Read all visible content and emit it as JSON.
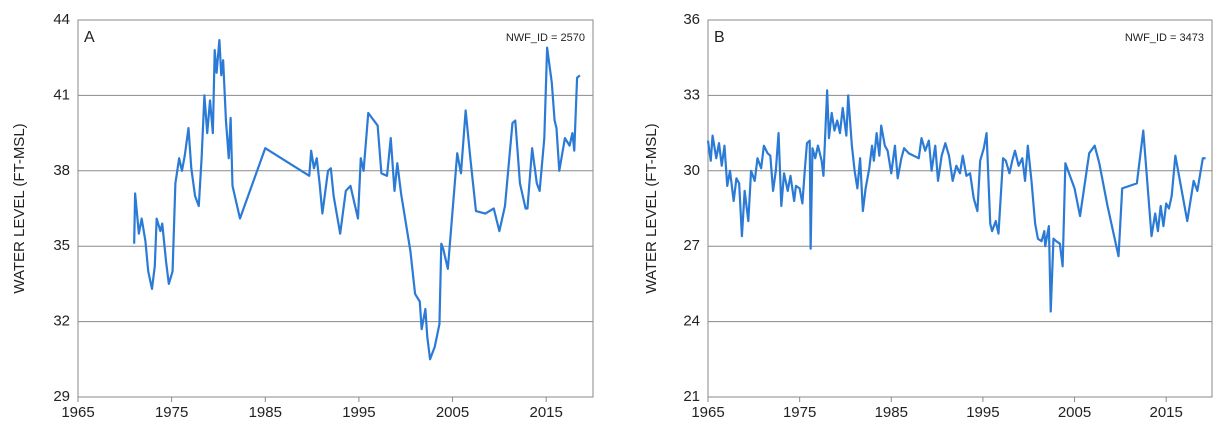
{
  "chart_data": [
    {
      "type": "line",
      "panel": "A",
      "annotation": "NWF_ID = 2570",
      "ylabel": "WATER LEVEL (FT-MSL)",
      "color": "#2b7bd6",
      "xlim": [
        1965,
        2020
      ],
      "xticks": [
        1965,
        1975,
        1985,
        1995,
        2005,
        2015
      ],
      "ylim": [
        29,
        44
      ],
      "yticks": [
        29,
        32,
        35,
        38,
        41,
        44
      ],
      "grid": true,
      "x": [
        1971.0,
        1971.1,
        1971.5,
        1971.8,
        1972.2,
        1972.5,
        1972.9,
        1973.2,
        1973.4,
        1973.8,
        1974.0,
        1974.4,
        1974.7,
        1975.1,
        1975.4,
        1975.8,
        1976.1,
        1976.4,
        1976.8,
        1977.1,
        1977.5,
        1977.9,
        1978.2,
        1978.5,
        1978.8,
        1979.1,
        1979.4,
        1979.6,
        1979.8,
        1980.1,
        1980.3,
        1980.5,
        1980.8,
        1981.1,
        1981.3,
        1981.5,
        1982.3,
        1985.0,
        1989.7,
        1989.9,
        1990.2,
        1990.5,
        1990.8,
        1991.1,
        1991.7,
        1992.0,
        1992.3,
        1993.0,
        1993.6,
        1994.1,
        1994.9,
        1995.2,
        1995.5,
        1996.0,
        1997.0,
        1997.4,
        1998.0,
        1998.4,
        1998.8,
        1999.1,
        1999.5,
        2000.5,
        2001.0,
        2001.5,
        2001.7,
        2002.1,
        2002.3,
        2002.6,
        2003.1,
        2003.6,
        2003.8,
        2004.0,
        2004.5,
        2005.5,
        2005.9,
        2006.4,
        2006.9,
        2007.5,
        2008.5,
        2009.4,
        2010.0,
        2010.6,
        2011.4,
        2011.7,
        2012.2,
        2012.8,
        2013.0,
        2013.5,
        2014.0,
        2014.3,
        2014.8,
        2015.1,
        2015.6,
        2015.9,
        2016.1,
        2016.4,
        2017.0,
        2017.5,
        2017.8,
        2018.0,
        2018.3,
        2018.6
      ],
      "values": [
        35.1,
        37.1,
        35.5,
        36.1,
        35.2,
        34.0,
        33.3,
        34.2,
        36.1,
        35.6,
        35.9,
        34.4,
        33.5,
        34.0,
        37.5,
        38.5,
        38.0,
        38.6,
        39.7,
        38.1,
        37.0,
        36.6,
        38.5,
        41.0,
        39.5,
        40.8,
        39.5,
        42.8,
        41.9,
        43.2,
        41.8,
        42.4,
        40.0,
        38.5,
        40.1,
        37.4,
        36.1,
        38.9,
        37.8,
        38.8,
        38.1,
        38.5,
        37.5,
        36.3,
        38.0,
        38.1,
        37.0,
        35.5,
        37.2,
        37.4,
        36.1,
        38.5,
        38.0,
        40.3,
        39.8,
        37.9,
        37.8,
        39.3,
        37.2,
        38.3,
        37.1,
        34.8,
        33.1,
        32.8,
        31.7,
        32.5,
        31.4,
        30.5,
        31.0,
        31.9,
        35.1,
        34.9,
        34.1,
        38.7,
        37.9,
        40.4,
        38.5,
        36.4,
        36.3,
        36.5,
        35.6,
        36.6,
        39.9,
        40.0,
        37.5,
        36.5,
        36.5,
        38.9,
        37.5,
        37.2,
        39.3,
        42.9,
        41.5,
        40.0,
        39.7,
        38.0,
        39.3,
        39.0,
        39.5,
        38.8,
        41.7,
        41.8
      ]
    },
    {
      "type": "line",
      "panel": "B",
      "annotation": "NWF_ID = 3473",
      "ylabel": "WATER LEVEL (FT-MSL)",
      "color": "#2b7bd6",
      "xlim": [
        1965,
        2020
      ],
      "xticks": [
        1965,
        1975,
        1985,
        1995,
        2005,
        2015
      ],
      "ylim": [
        21,
        36
      ],
      "yticks": [
        21,
        24,
        27,
        30,
        33,
        36
      ],
      "grid": true,
      "x": [
        1965.0,
        1965.3,
        1965.5,
        1965.9,
        1966.2,
        1966.5,
        1966.8,
        1967.1,
        1967.4,
        1967.8,
        1968.1,
        1968.4,
        1968.7,
        1969.0,
        1969.4,
        1969.7,
        1970.1,
        1970.4,
        1970.8,
        1971.1,
        1971.5,
        1971.8,
        1972.1,
        1972.4,
        1972.7,
        1973.0,
        1973.3,
        1973.7,
        1974.0,
        1974.4,
        1974.6,
        1975.0,
        1975.3,
        1975.6,
        1975.8,
        1976.1,
        1976.2,
        1976.4,
        1976.7,
        1977.0,
        1977.4,
        1977.6,
        1978.0,
        1978.2,
        1978.5,
        1978.8,
        1979.1,
        1979.4,
        1979.7,
        1980.1,
        1980.3,
        1980.7,
        1981.0,
        1981.3,
        1981.6,
        1981.9,
        1982.2,
        1982.6,
        1982.9,
        1983.1,
        1983.4,
        1983.7,
        1983.9,
        1984.3,
        1984.6,
        1985.0,
        1985.4,
        1985.7,
        1986.1,
        1986.4,
        1986.9,
        1988.0,
        1988.3,
        1988.7,
        1989.1,
        1989.4,
        1989.8,
        1990.1,
        1990.5,
        1990.9,
        1991.3,
        1991.7,
        1992.1,
        1992.5,
        1992.8,
        1993.2,
        1993.6,
        1994.0,
        1994.4,
        1994.7,
        1995.1,
        1995.4,
        1995.8,
        1996.0,
        1996.4,
        1996.7,
        1997.2,
        1997.5,
        1997.9,
        1998.2,
        1998.5,
        1998.9,
        1999.3,
        1999.6,
        1999.9,
        2000.3,
        2000.7,
        2001.0,
        2001.4,
        2001.7,
        2001.8,
        2002.2,
        2002.4,
        2002.7,
        2003.0,
        2003.4,
        2003.7,
        2004.0,
        2005.0,
        2005.6,
        2006.6,
        2007.2,
        2007.7,
        2008.6,
        2009.8,
        2010.2,
        2011.0,
        2011.8,
        2012.5,
        2013.4,
        2013.8,
        2014.1,
        2014.4,
        2014.7,
        2015.0,
        2015.3,
        2015.6,
        2016.0,
        2016.8,
        2017.3,
        2018.0,
        2018.4,
        2019.0,
        2019.3
      ],
      "values": [
        31.2,
        30.4,
        31.4,
        30.5,
        31.1,
        30.2,
        31.0,
        29.4,
        30.0,
        28.8,
        29.7,
        29.5,
        27.4,
        29.2,
        28.0,
        30.0,
        29.6,
        30.5,
        30.1,
        31.0,
        30.7,
        30.6,
        29.2,
        30.0,
        31.5,
        28.6,
        29.9,
        29.2,
        29.8,
        28.8,
        29.4,
        29.3,
        28.7,
        30.2,
        31.1,
        31.2,
        26.9,
        30.9,
        30.5,
        31.0,
        30.4,
        29.8,
        33.2,
        31.3,
        32.3,
        31.6,
        32.0,
        31.5,
        32.5,
        31.4,
        33.0,
        31.0,
        30.0,
        29.3,
        30.5,
        28.4,
        29.3,
        30.1,
        31.0,
        30.4,
        31.5,
        30.6,
        31.8,
        31.0,
        30.8,
        29.9,
        31.0,
        29.7,
        30.5,
        30.9,
        30.7,
        30.5,
        31.3,
        30.8,
        31.2,
        30.0,
        31.0,
        29.6,
        30.6,
        31.1,
        30.6,
        29.6,
        30.2,
        29.9,
        30.6,
        29.8,
        29.9,
        28.9,
        28.4,
        30.4,
        30.9,
        31.5,
        27.9,
        27.6,
        28.0,
        27.5,
        30.5,
        30.4,
        29.9,
        30.4,
        30.8,
        30.2,
        30.5,
        29.6,
        31.0,
        29.6,
        27.9,
        27.3,
        27.2,
        27.6,
        27.0,
        27.8,
        24.4,
        27.3,
        27.2,
        27.1,
        26.2,
        30.3,
        29.3,
        28.2,
        30.7,
        31.0,
        30.3,
        28.6,
        26.6,
        29.3,
        29.4,
        29.5,
        31.6,
        27.4,
        28.3,
        27.6,
        28.6,
        27.8,
        28.7,
        28.5,
        29.0,
        30.6,
        29.0,
        28.0,
        29.6,
        29.2,
        30.5,
        30.5
      ]
    }
  ]
}
